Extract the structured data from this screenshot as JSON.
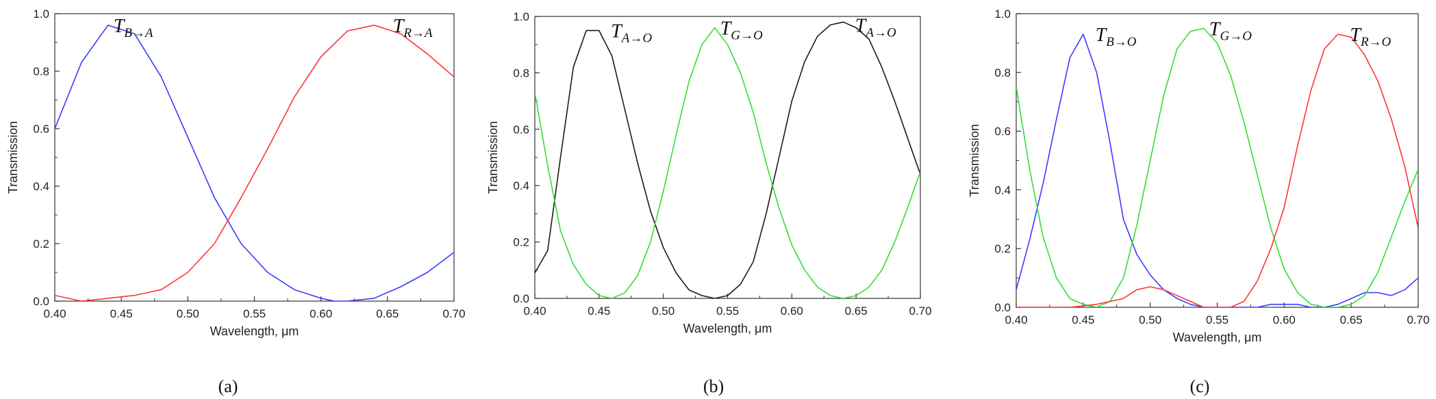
{
  "chart_data": [
    {
      "type": "line",
      "caption": "(a)",
      "xlabel": "Wavelength, μm",
      "ylabel": "Transmission",
      "xlim": [
        0.4,
        0.7
      ],
      "ylim": [
        0.0,
        1.0
      ],
      "xticks": [
        "0.40",
        "0.45",
        "0.50",
        "0.55",
        "0.60",
        "0.65",
        "0.70"
      ],
      "yticks": [
        "0.0",
        "0.2",
        "0.4",
        "0.6",
        "0.8",
        "1.0"
      ],
      "grid": false,
      "series": [
        {
          "color": "#3a3aff",
          "annotation": {
            "main": "T",
            "sub": "B→A",
            "x": 0.44,
            "y": 0.96
          },
          "x": [
            0.4,
            0.42,
            0.44,
            0.46,
            0.48,
            0.5,
            0.52,
            0.54,
            0.56,
            0.58,
            0.6,
            0.61,
            0.62,
            0.64,
            0.66,
            0.68,
            0.7
          ],
          "y": [
            0.6,
            0.83,
            0.96,
            0.93,
            0.78,
            0.57,
            0.36,
            0.2,
            0.1,
            0.04,
            0.01,
            0.0,
            0.0,
            0.01,
            0.05,
            0.1,
            0.17
          ]
        },
        {
          "color": "#ff3333",
          "annotation": {
            "main": "T",
            "sub": "R→A",
            "x": 0.65,
            "y": 0.96
          },
          "x": [
            0.4,
            0.42,
            0.44,
            0.46,
            0.48,
            0.5,
            0.52,
            0.54,
            0.56,
            0.58,
            0.6,
            0.62,
            0.64,
            0.66,
            0.68,
            0.7
          ],
          "y": [
            0.02,
            0.0,
            0.01,
            0.02,
            0.04,
            0.1,
            0.2,
            0.36,
            0.53,
            0.71,
            0.85,
            0.94,
            0.96,
            0.93,
            0.86,
            0.78
          ]
        }
      ]
    },
    {
      "type": "line",
      "caption": "(b)",
      "xlabel": "Wavelength, μm",
      "ylabel": "Transmission",
      "xlim": [
        0.4,
        0.7
      ],
      "ylim": [
        0.0,
        1.0
      ],
      "xticks": [
        "0.40",
        "0.45",
        "0.50",
        "0.55",
        "0.60",
        "0.65",
        "0.70"
      ],
      "yticks": [
        "0.0",
        "0.2",
        "0.4",
        "0.6",
        "0.8",
        "1.0"
      ],
      "grid": false,
      "series": [
        {
          "color": "#1a1a1a",
          "annotation": {
            "main": "T",
            "sub": "A→O",
            "x": 0.455,
            "y": 0.95
          },
          "annotation2": {
            "main": "T",
            "sub": "A→O",
            "x": 0.645,
            "y": 0.97
          },
          "x": [
            0.4,
            0.41,
            0.42,
            0.43,
            0.44,
            0.45,
            0.46,
            0.47,
            0.48,
            0.49,
            0.5,
            0.51,
            0.52,
            0.53,
            0.54,
            0.55,
            0.56,
            0.57,
            0.58,
            0.59,
            0.6,
            0.61,
            0.62,
            0.63,
            0.64,
            0.65,
            0.66,
            0.67,
            0.68,
            0.69,
            0.7
          ],
          "y": [
            0.09,
            0.17,
            0.5,
            0.82,
            0.95,
            0.95,
            0.86,
            0.67,
            0.48,
            0.31,
            0.18,
            0.09,
            0.03,
            0.01,
            0.0,
            0.01,
            0.05,
            0.13,
            0.3,
            0.5,
            0.7,
            0.84,
            0.93,
            0.97,
            0.98,
            0.96,
            0.92,
            0.82,
            0.7,
            0.57,
            0.44
          ]
        },
        {
          "color": "#33dd33",
          "annotation": {
            "main": "T",
            "sub": "G→O",
            "x": 0.54,
            "y": 0.96
          },
          "x": [
            0.4,
            0.41,
            0.42,
            0.43,
            0.44,
            0.45,
            0.46,
            0.47,
            0.48,
            0.49,
            0.5,
            0.51,
            0.52,
            0.53,
            0.54,
            0.55,
            0.56,
            0.57,
            0.58,
            0.59,
            0.6,
            0.61,
            0.62,
            0.63,
            0.64,
            0.65,
            0.66,
            0.67,
            0.68,
            0.69,
            0.7
          ],
          "y": [
            0.73,
            0.47,
            0.24,
            0.12,
            0.05,
            0.01,
            0.0,
            0.02,
            0.08,
            0.2,
            0.38,
            0.58,
            0.77,
            0.9,
            0.96,
            0.9,
            0.8,
            0.66,
            0.48,
            0.32,
            0.19,
            0.1,
            0.04,
            0.01,
            0.0,
            0.01,
            0.04,
            0.1,
            0.2,
            0.32,
            0.45
          ]
        }
      ]
    },
    {
      "type": "line",
      "caption": "(c)",
      "xlabel": "Wavelength, μm",
      "ylabel": "Transmission",
      "xlim": [
        0.4,
        0.7
      ],
      "ylim": [
        0.0,
        1.0
      ],
      "xticks": [
        "0.40",
        "0.45",
        "0.50",
        "0.55",
        "0.60",
        "0.65",
        "0.70"
      ],
      "yticks": [
        "0.0",
        "0.2",
        "0.4",
        "0.6",
        "0.8",
        "1.0"
      ],
      "grid": false,
      "series": [
        {
          "color": "#3a3aff",
          "annotation": {
            "main": "T",
            "sub": "B→O",
            "x": 0.455,
            "y": 0.93
          },
          "x": [
            0.4,
            0.41,
            0.42,
            0.43,
            0.44,
            0.45,
            0.46,
            0.47,
            0.48,
            0.49,
            0.5,
            0.51,
            0.52,
            0.53,
            0.54,
            0.55,
            0.56,
            0.57,
            0.58,
            0.59,
            0.6,
            0.61,
            0.62,
            0.63,
            0.64,
            0.65,
            0.66,
            0.67,
            0.68,
            0.69,
            0.7
          ],
          "y": [
            0.06,
            0.23,
            0.42,
            0.64,
            0.85,
            0.93,
            0.8,
            0.56,
            0.3,
            0.18,
            0.11,
            0.06,
            0.03,
            0.01,
            0.0,
            0.0,
            0.0,
            0.0,
            0.0,
            0.01,
            0.01,
            0.01,
            0.0,
            0.0,
            0.01,
            0.03,
            0.05,
            0.05,
            0.04,
            0.06,
            0.1
          ]
        },
        {
          "color": "#33dd33",
          "annotation": {
            "main": "T",
            "sub": "G→O",
            "x": 0.54,
            "y": 0.95
          },
          "x": [
            0.4,
            0.41,
            0.42,
            0.43,
            0.44,
            0.45,
            0.46,
            0.47,
            0.48,
            0.49,
            0.5,
            0.51,
            0.52,
            0.53,
            0.54,
            0.55,
            0.56,
            0.57,
            0.58,
            0.59,
            0.6,
            0.61,
            0.62,
            0.63,
            0.64,
            0.65,
            0.66,
            0.67,
            0.68,
            0.69,
            0.7
          ],
          "y": [
            0.75,
            0.47,
            0.24,
            0.1,
            0.03,
            0.01,
            0.0,
            0.02,
            0.1,
            0.28,
            0.5,
            0.72,
            0.88,
            0.94,
            0.95,
            0.9,
            0.79,
            0.63,
            0.45,
            0.27,
            0.13,
            0.05,
            0.01,
            0.0,
            0.0,
            0.01,
            0.04,
            0.12,
            0.24,
            0.36,
            0.47
          ]
        },
        {
          "color": "#ff3333",
          "annotation": {
            "main": "T",
            "sub": "R→O",
            "x": 0.645,
            "y": 0.93
          },
          "x": [
            0.4,
            0.42,
            0.44,
            0.46,
            0.48,
            0.49,
            0.5,
            0.51,
            0.52,
            0.53,
            0.54,
            0.55,
            0.56,
            0.57,
            0.58,
            0.59,
            0.6,
            0.61,
            0.62,
            0.63,
            0.64,
            0.65,
            0.66,
            0.67,
            0.68,
            0.69,
            0.7
          ],
          "y": [
            0.0,
            0.0,
            0.0,
            0.01,
            0.03,
            0.06,
            0.07,
            0.06,
            0.04,
            0.02,
            0.0,
            0.0,
            0.0,
            0.02,
            0.09,
            0.2,
            0.34,
            0.55,
            0.74,
            0.88,
            0.93,
            0.92,
            0.86,
            0.77,
            0.64,
            0.48,
            0.27
          ]
        }
      ]
    }
  ]
}
